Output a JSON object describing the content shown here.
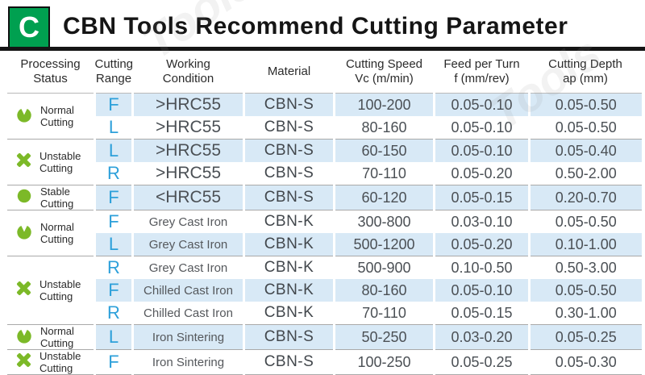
{
  "header": {
    "logo_letter": "C",
    "title": "CBN Tools Recommend Cutting Parameter"
  },
  "watermark": {
    "text": "Tools"
  },
  "colors": {
    "logo_green": "#00a050",
    "icon_green": "#7cb928",
    "range_blue": "#2da0da",
    "row_highlight_blue": "#d8e9f6",
    "title_black": "#151515",
    "value_gray": "#4b5055"
  },
  "columns": [
    {
      "line1": "Processing",
      "line2": "Status"
    },
    {
      "line1": "Cutting",
      "line2": "Range"
    },
    {
      "line1": "Working",
      "line2": "Condition"
    },
    {
      "line1": "Material",
      "line2": ""
    },
    {
      "line1": "Cutting Speed",
      "line2": "Vc (m/min)"
    },
    {
      "line1": "Feed per Turn",
      "line2": "f (mm/rev)"
    },
    {
      "line1": "Cutting Depth",
      "line2": "ap (mm)"
    }
  ],
  "groups": [
    {
      "status": "Normal Cutting",
      "icon": "normal-cutting-icon",
      "rows": [
        {
          "range": "F",
          "condition": ">HRC55",
          "material": "CBN-S",
          "speed": "100-200",
          "feed": "0.05-0.10",
          "depth": "0.05-0.50"
        },
        {
          "range": "L",
          "condition": ">HRC55",
          "material": "CBN-S",
          "speed": "80-160",
          "feed": "0.05-0.10",
          "depth": "0.05-0.50"
        }
      ]
    },
    {
      "status": "Unstable Cutting",
      "icon": "unstable-cutting-icon",
      "rows": [
        {
          "range": "L",
          "condition": ">HRC55",
          "material": "CBN-S",
          "speed": "60-150",
          "feed": "0.05-0.10",
          "depth": "0.05-0.40"
        },
        {
          "range": "R",
          "condition": ">HRC55",
          "material": "CBN-S",
          "speed": "70-110",
          "feed": "0.05-0.20",
          "depth": "0.50-2.00"
        }
      ]
    },
    {
      "status": "Stable Cutting",
      "icon": "stable-cutting-icon",
      "rows": [
        {
          "range": "F",
          "condition": "<HRC55",
          "material": "CBN-S",
          "speed": "60-120",
          "feed": "0.05-0.15",
          "depth": "0.20-0.70"
        }
      ]
    },
    {
      "status": "Normal Cutting",
      "icon": "normal-cutting-icon",
      "rows": [
        {
          "range": "F",
          "condition": "Grey Cast Iron",
          "material": "CBN-K",
          "speed": "300-800",
          "feed": "0.03-0.10",
          "depth": "0.05-0.50"
        },
        {
          "range": "L",
          "condition": "Grey Cast Iron",
          "material": "CBN-K",
          "speed": "500-1200",
          "feed": "0.05-0.20",
          "depth": "0.10-1.00"
        }
      ]
    },
    {
      "status": "Unstable Cutting",
      "icon": "unstable-cutting-icon",
      "rows": [
        {
          "range": "R",
          "condition": "Grey Cast Iron",
          "material": "CBN-K",
          "speed": "500-900",
          "feed": "0.10-0.50",
          "depth": "0.50-3.00"
        },
        {
          "range": "F",
          "condition": "Chilled Cast Iron",
          "material": "CBN-K",
          "speed": "80-160",
          "feed": "0.05-0.10",
          "depth": "0.05-0.50"
        },
        {
          "range": "R",
          "condition": "Chilled Cast Iron",
          "material": "CBN-K",
          "speed": "70-110",
          "feed": "0.05-0.15",
          "depth": "0.30-1.00"
        }
      ]
    },
    {
      "status": "Normal Cutting",
      "icon": "normal-cutting-icon",
      "rows": [
        {
          "range": "L",
          "condition": "Iron Sintering",
          "material": "CBN-S",
          "speed": "50-250",
          "feed": "0.03-0.20",
          "depth": "0.05-0.25"
        }
      ]
    },
    {
      "status": "Unstable Cutting",
      "icon": "unstable-cutting-icon",
      "rows": [
        {
          "range": "F",
          "condition": "Iron Sintering",
          "material": "CBN-S",
          "speed": "100-250",
          "feed": "0.05-0.25",
          "depth": "0.05-0.30"
        }
      ]
    }
  ]
}
